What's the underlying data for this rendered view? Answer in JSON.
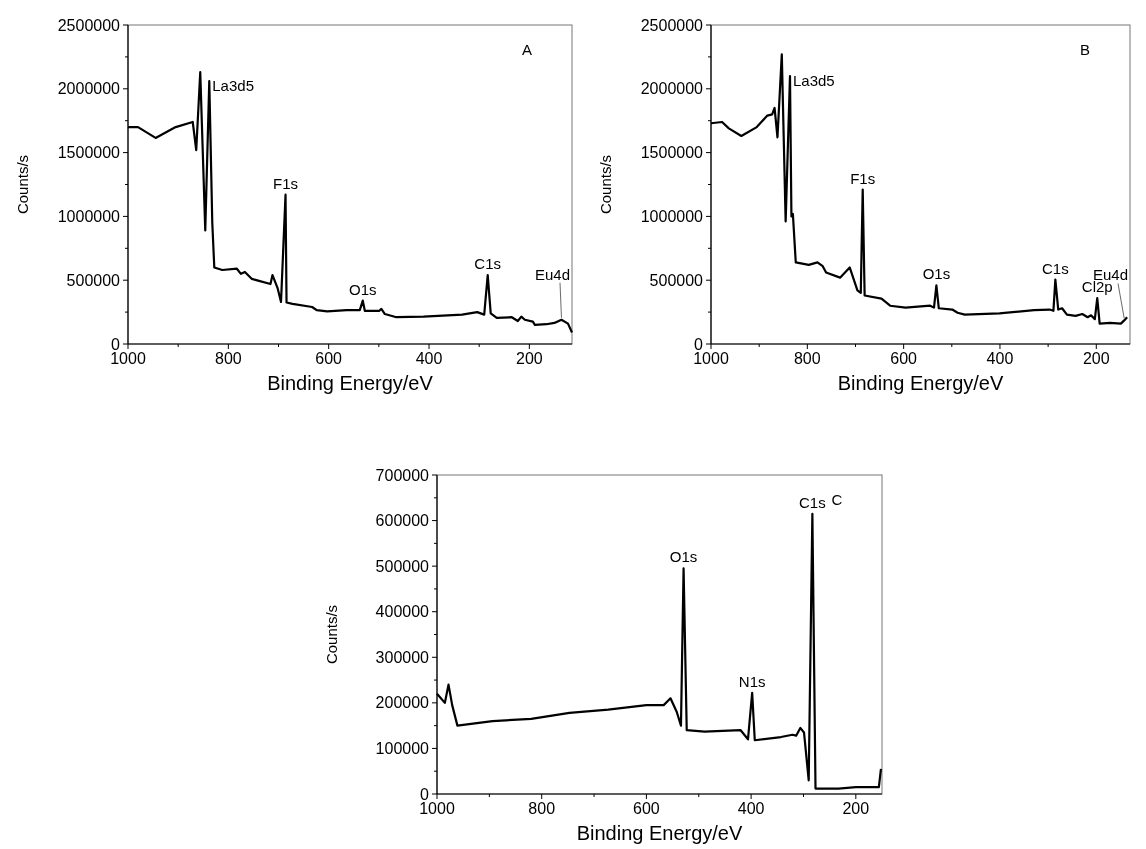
{
  "chart_data": [
    {
      "type": "line",
      "title": "A",
      "xlabel": "Binding Energy/eV",
      "ylabel": "Counts/s",
      "color": "#000000",
      "x": [
        1000,
        980,
        945,
        905,
        871,
        864,
        856,
        846,
        838,
        832,
        828,
        812,
        783,
        775,
        767,
        753,
        716,
        712,
        702,
        695,
        686,
        684,
        672,
        633,
        624,
        603,
        564,
        538,
        532,
        528,
        499,
        495,
        488,
        465,
        411,
        334,
        304,
        290,
        283,
        277,
        265,
        235,
        223,
        216,
        209,
        193,
        189,
        166,
        150,
        136,
        123,
        115
      ],
      "values": [
        1700000,
        1700000,
        1615000,
        1700000,
        1740000,
        1520000,
        2130000,
        890000,
        2060000,
        950000,
        600000,
        580000,
        590000,
        550000,
        565000,
        510000,
        470000,
        540000,
        440000,
        330000,
        1170000,
        325000,
        315000,
        290000,
        265000,
        255000,
        265000,
        265000,
        340000,
        260000,
        260000,
        275000,
        235000,
        210000,
        215000,
        230000,
        250000,
        230000,
        540000,
        240000,
        205000,
        210000,
        180000,
        215000,
        190000,
        175000,
        150000,
        155000,
        165000,
        190000,
        160000,
        90000
      ],
      "xlim": [
        1000,
        115
      ],
      "xticks": [
        1000,
        800,
        600,
        400,
        200
      ],
      "ylim": [
        0,
        2500000
      ],
      "yticks": [
        0,
        500000,
        1000000,
        1500000,
        2000000,
        2500000
      ],
      "annotations": [
        {
          "text": "La3d5",
          "x": 838,
          "y": 2060000
        },
        {
          "text": "F1s",
          "x": 686,
          "y": 1170000
        },
        {
          "text": "O1s",
          "x": 532,
          "y": 340000
        },
        {
          "text": "C1s",
          "x": 283,
          "y": 540000
        },
        {
          "text": "Eu4d",
          "x": 136,
          "y": 190000
        }
      ]
    },
    {
      "type": "line",
      "title": "B",
      "xlabel": "Binding Energy/eV",
      "ylabel": "Counts/s",
      "color": "#000000",
      "x": [
        1000,
        977,
        963,
        937,
        905,
        883,
        873,
        868,
        862,
        853,
        845,
        836,
        833,
        830,
        824,
        797,
        779,
        768,
        761,
        732,
        712,
        696,
        689,
        685,
        681,
        646,
        628,
        596,
        545,
        537,
        532,
        527,
        499,
        488,
        473,
        401,
        329,
        297,
        289,
        285,
        279,
        271,
        261,
        243,
        229,
        218,
        211,
        203,
        198,
        193,
        171,
        149,
        142,
        136
      ],
      "values": [
        1730000,
        1740000,
        1690000,
        1630000,
        1700000,
        1790000,
        1800000,
        1850000,
        1620000,
        2270000,
        960000,
        2100000,
        1000000,
        1020000,
        640000,
        620000,
        640000,
        610000,
        560000,
        520000,
        600000,
        420000,
        400000,
        1210000,
        380000,
        355000,
        300000,
        285000,
        300000,
        285000,
        460000,
        280000,
        270000,
        245000,
        230000,
        240000,
        265000,
        270000,
        260000,
        505000,
        270000,
        280000,
        230000,
        220000,
        235000,
        210000,
        225000,
        195000,
        360000,
        160000,
        165000,
        160000,
        185000,
        210000
      ],
      "xlim": [
        1000,
        130
      ],
      "xticks": [
        1000,
        800,
        600,
        400,
        200
      ],
      "ylim": [
        0,
        2500000
      ],
      "yticks": [
        0,
        500000,
        1000000,
        1500000,
        2000000,
        2500000
      ],
      "annotations": [
        {
          "text": "La3d5",
          "x": 836,
          "y": 2100000
        },
        {
          "text": "F1s",
          "x": 685,
          "y": 1210000
        },
        {
          "text": "O1s",
          "x": 532,
          "y": 460000
        },
        {
          "text": "C1s",
          "x": 285,
          "y": 505000
        },
        {
          "text": "Cl2p",
          "x": 198,
          "y": 360000
        },
        {
          "text": "Eu4d",
          "x": 142,
          "y": 185000
        }
      ]
    },
    {
      "type": "line",
      "title": "C",
      "xlabel": "Binding Energy/eV",
      "ylabel": "Counts/s",
      "color": "#000000",
      "x": [
        1000,
        985,
        978,
        971,
        961,
        894,
        820,
        747,
        673,
        600,
        567,
        554,
        542,
        534,
        529,
        523,
        489,
        420,
        406,
        398,
        393,
        343,
        321,
        314,
        306,
        299,
        290,
        283,
        277,
        233,
        200,
        182,
        156,
        152
      ],
      "values": [
        220000,
        200000,
        240000,
        195000,
        150000,
        160000,
        165000,
        178000,
        185000,
        195000,
        195000,
        210000,
        180000,
        150000,
        495000,
        140000,
        137000,
        140000,
        120000,
        222000,
        118000,
        125000,
        130000,
        128000,
        145000,
        135000,
        30000,
        615000,
        12000,
        12000,
        15000,
        15000,
        15000,
        55000
      ],
      "xlim": [
        1000,
        150
      ],
      "xticks": [
        1000,
        800,
        600,
        400,
        200
      ],
      "ylim": [
        0,
        700000
      ],
      "yticks": [
        0,
        100000,
        200000,
        300000,
        400000,
        500000,
        600000,
        700000
      ],
      "annotations": [
        {
          "text": "O1s",
          "x": 529,
          "y": 495000
        },
        {
          "text": "N1s",
          "x": 398,
          "y": 222000
        },
        {
          "text": "C1s",
          "x": 283,
          "y": 615000
        }
      ]
    }
  ]
}
